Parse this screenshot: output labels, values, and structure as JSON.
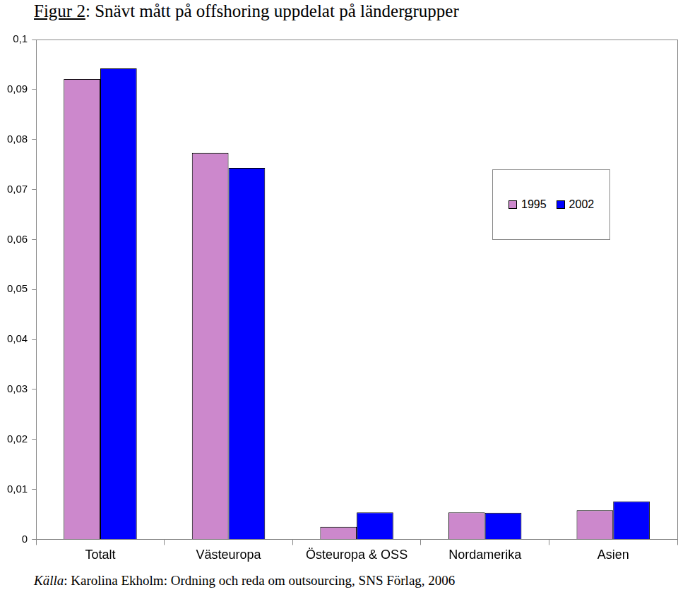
{
  "chart_data": {
    "type": "bar",
    "title": "Figur 2: Snävt mått på offshoring uppdelat på ländergrupper",
    "source": "Källa: Karolina Ekholm: Ordning och reda om outsourcing, SNS Förlag, 2006",
    "categories": [
      "Totalt",
      "Västeuropa",
      "Östeuropa & OSS",
      "Nordamerika",
      "Asien"
    ],
    "series": [
      {
        "name": "1995",
        "color": "#cc88cc",
        "values": [
          0.0921,
          0.0773,
          0.0025,
          0.0054,
          0.0058
        ]
      },
      {
        "name": "2002",
        "color": "#0000ff",
        "values": [
          0.0942,
          0.0743,
          0.0054,
          0.0053,
          0.0076
        ]
      }
    ],
    "ylim": [
      0,
      0.1
    ],
    "yticks": [
      0,
      {
        "value": 0.01,
        "label": "0,01"
      },
      {
        "value": 0.02,
        "label": "0,02"
      },
      {
        "value": 0.03,
        "label": "0,03"
      },
      {
        "value": 0.04,
        "label": "0,04"
      },
      {
        "value": 0.05,
        "label": "0,05"
      },
      {
        "value": 0.06,
        "label": "0,06"
      },
      {
        "value": 0.07,
        "label": "0,07"
      },
      {
        "value": 0.08,
        "label": "0,08"
      },
      {
        "value": 0.09,
        "label": "0,09"
      },
      {
        "value": 0.1,
        "label": "0,1"
      }
    ],
    "grid": false,
    "legend": "right"
  }
}
